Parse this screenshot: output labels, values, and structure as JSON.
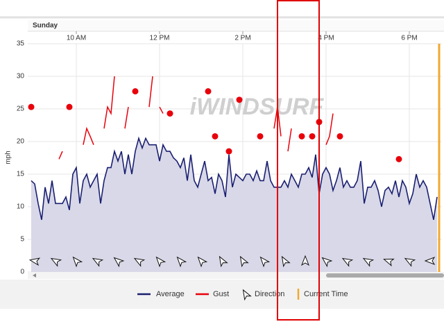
{
  "chart_data": {
    "type": "line",
    "day": "Sunday",
    "y_label": "mph",
    "watermark": "iWINDSURF",
    "xlim": [
      530,
      1127
    ],
    "xticks": [
      {
        "value": 600,
        "label": "10 AM"
      },
      {
        "value": 720,
        "label": "12 PM"
      },
      {
        "value": 840,
        "label": "2 PM"
      },
      {
        "value": 960,
        "label": "4 PM"
      },
      {
        "value": 1080,
        "label": "6 PM"
      }
    ],
    "ylim": [
      0,
      35
    ],
    "yticks": [
      0,
      5,
      10,
      15,
      20,
      25,
      30,
      35
    ],
    "grid": true,
    "x": [
      535,
      540,
      545,
      550,
      555,
      560,
      565,
      570,
      575,
      580,
      585,
      590,
      595,
      600,
      605,
      610,
      615,
      620,
      625,
      630,
      635,
      640,
      645,
      650,
      655,
      660,
      665,
      670,
      675,
      680,
      685,
      690,
      695,
      700,
      705,
      710,
      715,
      720,
      725,
      730,
      735,
      740,
      745,
      750,
      755,
      760,
      765,
      770,
      775,
      780,
      785,
      790,
      795,
      800,
      805,
      810,
      815,
      820,
      825,
      830,
      835,
      840,
      845,
      850,
      855,
      860,
      865,
      870,
      875,
      880,
      885,
      890,
      895,
      900,
      905,
      910,
      915,
      920,
      925,
      930,
      935,
      940,
      945,
      950,
      955,
      960,
      965,
      970,
      975,
      980,
      985,
      990,
      995,
      1000,
      1005,
      1010,
      1015,
      1020,
      1025,
      1030,
      1035,
      1040,
      1045,
      1050,
      1055,
      1060,
      1065,
      1070,
      1075,
      1080,
      1085,
      1090,
      1095,
      1100,
      1105,
      1110,
      1115,
      1120
    ],
    "series": [
      {
        "name": "Average",
        "color": "#1a1f71",
        "values": [
          14,
          13.5,
          10.5,
          8,
          13,
          10.5,
          14,
          10.5,
          10.5,
          10.5,
          11.5,
          9.5,
          15,
          16,
          10.5,
          14,
          15,
          13,
          14,
          15,
          10.5,
          14,
          16,
          16,
          18.5,
          17,
          18.5,
          15,
          18,
          15,
          18.5,
          20.5,
          19,
          20.5,
          19.5,
          19.5,
          19.5,
          17,
          19.5,
          18.5,
          18.5,
          17.5,
          17,
          16,
          17.5,
          14,
          18,
          14,
          13,
          15,
          17,
          14,
          14.5,
          12,
          15,
          14,
          11.5,
          18,
          13,
          15,
          14.5,
          14,
          15,
          15,
          14,
          15.5,
          14,
          14,
          17,
          14,
          13,
          13,
          13,
          14,
          13,
          15,
          14,
          13,
          15,
          15,
          16,
          14.5,
          18,
          12,
          15,
          16,
          15,
          12.5,
          14,
          16,
          13,
          14,
          13,
          13,
          14,
          17,
          10.5,
          13,
          13,
          14,
          12.5,
          10,
          12.5,
          13,
          12,
          14,
          11.5,
          14,
          13,
          10.5,
          12,
          15,
          13,
          14,
          13,
          10.5,
          8,
          11.5
        ]
      },
      {
        "name": "Gust",
        "color": "#e8000b",
        "values": [
          25.3,
          null,
          null,
          null,
          null,
          null,
          null,
          null,
          17.3,
          18.5,
          null,
          25.3,
          null,
          null,
          null,
          19.5,
          22,
          20.8,
          19.5,
          null,
          null,
          22,
          25.3,
          24.3,
          30,
          null,
          null,
          22,
          25.3,
          null,
          27.7,
          null,
          null,
          null,
          25.3,
          30,
          null,
          25.3,
          24.3,
          null,
          24.3,
          null,
          null,
          null,
          null,
          null,
          null,
          null,
          null,
          null,
          null,
          27.7,
          null,
          20.8,
          null,
          null,
          null,
          18.5,
          null,
          null,
          26.4,
          null,
          null,
          null,
          null,
          null,
          20.8,
          null,
          null,
          null,
          22,
          25.3,
          20.8,
          null,
          18.5,
          22,
          null,
          null,
          20.8,
          null,
          null,
          20.8,
          null,
          23,
          null,
          19.5,
          20.8,
          24.3,
          null,
          20.8,
          null,
          null,
          null,
          null,
          null,
          null,
          null,
          null,
          null,
          null,
          null,
          null,
          null,
          null,
          null,
          null,
          17.3,
          null,
          null,
          null,
          null,
          null,
          null,
          null,
          null,
          null,
          null,
          null
        ]
      }
    ],
    "direction": {
      "name": "Direction",
      "x": [
        540,
        570,
        600,
        630,
        660,
        690,
        720,
        750,
        780,
        810,
        840,
        870,
        900,
        930,
        960,
        990,
        1020,
        1050,
        1080,
        1110
      ],
      "values": [
        280,
        300,
        320,
        300,
        310,
        300,
        320,
        320,
        320,
        330,
        330,
        320,
        330,
        0,
        310,
        300,
        300,
        290,
        300,
        270
      ]
    },
    "current_time": {
      "name": "Current Time",
      "color": "#f0a830",
      "x": 1123
    }
  }
}
